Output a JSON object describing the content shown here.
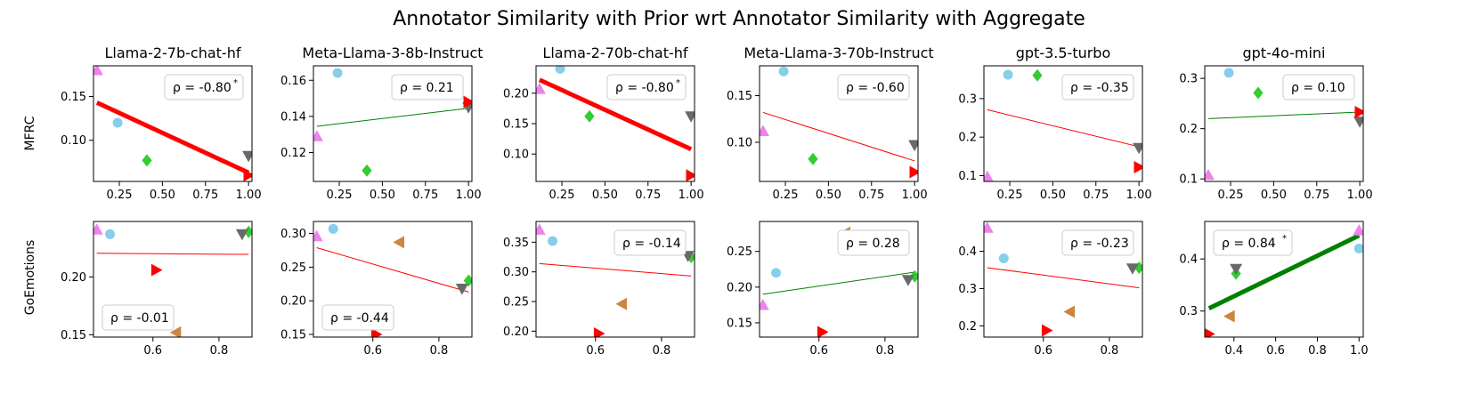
{
  "figure": {
    "title": "Annotator Similarity with Prior wrt Annotator Similarity with Aggregate"
  },
  "colors": {
    "violet": "#ee82ee",
    "skyblue": "#87ceeb",
    "green": "#32cd32",
    "dimgray": "#696969",
    "red": "#ff0000",
    "peru": "#cd853f",
    "pos_line": "#008000",
    "neg_line": "#ff0000"
  },
  "row_labels": [
    "MFRC",
    "GoEmotions"
  ],
  "chart_data": [
    {
      "type": "scatter",
      "row": 0,
      "col": 0,
      "title": "Llama-2-7b-chat-hf",
      "xlim": [
        0.1,
        1.02
      ],
      "ylim": [
        0.053,
        0.185
      ],
      "xticks": [
        0.25,
        0.5,
        0.75,
        1.0
      ],
      "xtick_labels": [
        "0.25",
        "0.50",
        "0.75",
        "1.00"
      ],
      "yticks": [
        0.1,
        0.15
      ],
      "ytick_labels": [
        "0.10",
        "0.15"
      ],
      "points": [
        {
          "x": 0.12,
          "y": 0.18,
          "marker": "tri-up",
          "color": "violet"
        },
        {
          "x": 0.24,
          "y": 0.12,
          "marker": "circle",
          "color": "skyblue"
        },
        {
          "x": 0.41,
          "y": 0.077,
          "marker": "diamond",
          "color": "green"
        },
        {
          "x": 1.0,
          "y": 0.082,
          "marker": "tri-down",
          "color": "dimgray"
        },
        {
          "x": 1.0,
          "y": 0.06,
          "marker": "tri-right",
          "color": "red"
        }
      ],
      "trend": {
        "x0": 0.12,
        "y0": 0.143,
        "x1": 1.0,
        "y1": 0.063,
        "width": 5,
        "color": "neg_line"
      },
      "rho": "ρ = -0.80",
      "significant": true,
      "rho_pos": "top-right"
    },
    {
      "type": "scatter",
      "row": 0,
      "col": 1,
      "title": "Meta-Llama-3-8b-Instruct",
      "xlim": [
        0.1,
        1.02
      ],
      "ylim": [
        0.104,
        0.168
      ],
      "xticks": [
        0.25,
        0.5,
        0.75,
        1.0
      ],
      "xtick_labels": [
        "0.25",
        "0.50",
        "0.75",
        "1.00"
      ],
      "yticks": [
        0.12,
        0.14,
        0.16
      ],
      "ytick_labels": [
        "0.12",
        "0.14",
        "0.16"
      ],
      "points": [
        {
          "x": 0.12,
          "y": 0.129,
          "marker": "tri-up",
          "color": "violet"
        },
        {
          "x": 0.24,
          "y": 0.164,
          "marker": "circle",
          "color": "skyblue"
        },
        {
          "x": 0.41,
          "y": 0.11,
          "marker": "diamond",
          "color": "green"
        },
        {
          "x": 1.0,
          "y": 0.145,
          "marker": "tri-down",
          "color": "dimgray"
        },
        {
          "x": 1.0,
          "y": 0.148,
          "marker": "tri-right",
          "color": "red"
        }
      ],
      "trend": {
        "x0": 0.12,
        "y0": 0.1345,
        "x1": 1.0,
        "y1": 0.1445,
        "width": 1,
        "color": "pos_line"
      },
      "rho": "ρ = 0.21",
      "significant": false,
      "rho_pos": "top-right"
    },
    {
      "type": "scatter",
      "row": 0,
      "col": 2,
      "title": "Llama-2-70b-chat-hf",
      "xlim": [
        0.1,
        1.02
      ],
      "ylim": [
        0.055,
        0.245
      ],
      "xticks": [
        0.25,
        0.5,
        0.75,
        1.0
      ],
      "xtick_labels": [
        "0.25",
        "0.50",
        "0.75",
        "1.00"
      ],
      "yticks": [
        0.1,
        0.15,
        0.2
      ],
      "ytick_labels": [
        "0.10",
        "0.15",
        "0.20"
      ],
      "points": [
        {
          "x": 0.12,
          "y": 0.207,
          "marker": "tri-up",
          "color": "violet"
        },
        {
          "x": 0.24,
          "y": 0.24,
          "marker": "circle",
          "color": "skyblue"
        },
        {
          "x": 0.41,
          "y": 0.162,
          "marker": "diamond",
          "color": "green"
        },
        {
          "x": 1.0,
          "y": 0.162,
          "marker": "tri-down",
          "color": "dimgray"
        },
        {
          "x": 1.0,
          "y": 0.065,
          "marker": "tri-right",
          "color": "red"
        }
      ],
      "trend": {
        "x0": 0.12,
        "y0": 0.222,
        "x1": 1.0,
        "y1": 0.108,
        "width": 5,
        "color": "neg_line"
      },
      "rho": "ρ = -0.80",
      "significant": true,
      "rho_pos": "top-right"
    },
    {
      "type": "scatter",
      "row": 0,
      "col": 3,
      "title": "Meta-Llama-3-70b-Instruct",
      "xlim": [
        0.1,
        1.02
      ],
      "ylim": [
        0.058,
        0.182
      ],
      "xticks": [
        0.25,
        0.5,
        0.75,
        1.0
      ],
      "xtick_labels": [
        "0.25",
        "0.50",
        "0.75",
        "1.00"
      ],
      "yticks": [
        0.1,
        0.15
      ],
      "ytick_labels": [
        "0.10",
        "0.15"
      ],
      "points": [
        {
          "x": 0.12,
          "y": 0.112,
          "marker": "tri-up",
          "color": "violet"
        },
        {
          "x": 0.24,
          "y": 0.176,
          "marker": "circle",
          "color": "skyblue"
        },
        {
          "x": 0.41,
          "y": 0.082,
          "marker": "diamond",
          "color": "green"
        },
        {
          "x": 1.0,
          "y": 0.097,
          "marker": "tri-down",
          "color": "dimgray"
        },
        {
          "x": 1.0,
          "y": 0.068,
          "marker": "tri-right",
          "color": "red"
        }
      ],
      "trend": {
        "x0": 0.12,
        "y0": 0.132,
        "x1": 1.0,
        "y1": 0.08,
        "width": 1,
        "color": "neg_line"
      },
      "rho": "ρ = -0.60",
      "significant": false,
      "rho_pos": "top-right"
    },
    {
      "type": "scatter",
      "row": 0,
      "col": 4,
      "title": "gpt-3.5-turbo",
      "xlim": [
        0.1,
        1.02
      ],
      "ylim": [
        0.085,
        0.385
      ],
      "xticks": [
        0.25,
        0.5,
        0.75,
        1.0
      ],
      "xtick_labels": [
        "0.25",
        "0.50",
        "0.75",
        "1.00"
      ],
      "yticks": [
        0.1,
        0.2,
        0.3
      ],
      "ytick_labels": [
        "0.1",
        "0.2",
        "0.3"
      ],
      "points": [
        {
          "x": 0.12,
          "y": 0.097,
          "marker": "tri-up",
          "color": "violet"
        },
        {
          "x": 0.24,
          "y": 0.362,
          "marker": "circle",
          "color": "skyblue"
        },
        {
          "x": 0.41,
          "y": 0.36,
          "marker": "diamond",
          "color": "green"
        },
        {
          "x": 1.0,
          "y": 0.172,
          "marker": "tri-down",
          "color": "dimgray"
        },
        {
          "x": 1.0,
          "y": 0.122,
          "marker": "tri-right",
          "color": "red"
        }
      ],
      "trend": {
        "x0": 0.12,
        "y0": 0.271,
        "x1": 1.0,
        "y1": 0.175,
        "width": 1,
        "color": "neg_line"
      },
      "rho": "ρ = -0.35",
      "significant": false,
      "rho_pos": "top-right"
    },
    {
      "type": "scatter",
      "row": 0,
      "col": 5,
      "title": "gpt-4o-mini",
      "xlim": [
        0.1,
        1.02
      ],
      "ylim": [
        0.095,
        0.325
      ],
      "xticks": [
        0.25,
        0.5,
        0.75,
        1.0
      ],
      "xtick_labels": [
        "0.25",
        "0.50",
        "0.75",
        "1.00"
      ],
      "yticks": [
        0.1,
        0.2,
        0.3
      ],
      "ytick_labels": [
        "0.1",
        "0.2",
        "0.3"
      ],
      "points": [
        {
          "x": 0.12,
          "y": 0.108,
          "marker": "tri-up",
          "color": "violet"
        },
        {
          "x": 0.24,
          "y": 0.311,
          "marker": "circle",
          "color": "skyblue"
        },
        {
          "x": 0.41,
          "y": 0.271,
          "marker": "diamond",
          "color": "green"
        },
        {
          "x": 1.0,
          "y": 0.214,
          "marker": "tri-down",
          "color": "dimgray"
        },
        {
          "x": 1.0,
          "y": 0.233,
          "marker": "tri-right",
          "color": "red"
        }
      ],
      "trend": {
        "x0": 0.12,
        "y0": 0.22,
        "x1": 1.0,
        "y1": 0.233,
        "width": 1,
        "color": "pos_line"
      },
      "rho": "ρ = 0.10",
      "significant": false,
      "rho_pos": "top-right"
    },
    {
      "type": "scatter",
      "row": 1,
      "col": 0,
      "title": "",
      "xlim": [
        0.42,
        0.9
      ],
      "ylim": [
        0.148,
        0.248
      ],
      "xticks": [
        0.6,
        0.8
      ],
      "xtick_labels": [
        "0.6",
        "0.8"
      ],
      "yticks": [
        0.15,
        0.2
      ],
      "ytick_labels": [
        "0.15",
        "0.20"
      ],
      "points": [
        {
          "x": 0.43,
          "y": 0.241,
          "marker": "tri-up",
          "color": "violet"
        },
        {
          "x": 0.47,
          "y": 0.237,
          "marker": "circle",
          "color": "skyblue"
        },
        {
          "x": 0.89,
          "y": 0.239,
          "marker": "diamond",
          "color": "green"
        },
        {
          "x": 0.87,
          "y": 0.237,
          "marker": "tri-down",
          "color": "dimgray"
        },
        {
          "x": 0.61,
          "y": 0.206,
          "marker": "tri-right",
          "color": "red"
        },
        {
          "x": 0.67,
          "y": 0.152,
          "marker": "tri-left",
          "color": "peru"
        }
      ],
      "trend": {
        "x0": 0.43,
        "y0": 0.2205,
        "x1": 0.89,
        "y1": 0.2195,
        "width": 1,
        "color": "neg_line"
      },
      "rho": "ρ = -0.01",
      "significant": false,
      "rho_pos": "bottom-left"
    },
    {
      "type": "scatter",
      "row": 1,
      "col": 1,
      "title": "",
      "xlim": [
        0.42,
        0.9
      ],
      "ylim": [
        0.146,
        0.318
      ],
      "xticks": [
        0.6,
        0.8
      ],
      "xtick_labels": [
        "0.6",
        "0.8"
      ],
      "yticks": [
        0.15,
        0.2,
        0.25,
        0.3
      ],
      "ytick_labels": [
        "0.15",
        "0.20",
        "0.25",
        "0.30"
      ],
      "points": [
        {
          "x": 0.43,
          "y": 0.296,
          "marker": "tri-up",
          "color": "violet"
        },
        {
          "x": 0.48,
          "y": 0.307,
          "marker": "circle",
          "color": "skyblue"
        },
        {
          "x": 0.89,
          "y": 0.23,
          "marker": "diamond",
          "color": "green"
        },
        {
          "x": 0.87,
          "y": 0.218,
          "marker": "tri-down",
          "color": "dimgray"
        },
        {
          "x": 0.61,
          "y": 0.15,
          "marker": "tri-right",
          "color": "red"
        },
        {
          "x": 0.68,
          "y": 0.287,
          "marker": "tri-left",
          "color": "peru"
        }
      ],
      "trend": {
        "x0": 0.43,
        "y0": 0.279,
        "x1": 0.89,
        "y1": 0.213,
        "width": 1,
        "color": "neg_line"
      },
      "rho": "ρ = -0.44",
      "significant": false,
      "rho_pos": "bottom-left"
    },
    {
      "type": "scatter",
      "row": 1,
      "col": 2,
      "title": "",
      "xlim": [
        0.42,
        0.9
      ],
      "ylim": [
        0.19,
        0.385
      ],
      "xticks": [
        0.6,
        0.8
      ],
      "xtick_labels": [
        "0.6",
        "0.8"
      ],
      "yticks": [
        0.2,
        0.25,
        0.3,
        0.35
      ],
      "ytick_labels": [
        "0.20",
        "0.25",
        "0.30",
        "0.35"
      ],
      "points": [
        {
          "x": 0.43,
          "y": 0.371,
          "marker": "tri-up",
          "color": "violet"
        },
        {
          "x": 0.47,
          "y": 0.352,
          "marker": "circle",
          "color": "skyblue"
        },
        {
          "x": 0.89,
          "y": 0.325,
          "marker": "diamond",
          "color": "green"
        },
        {
          "x": 0.88,
          "y": 0.327,
          "marker": "tri-down",
          "color": "dimgray"
        },
        {
          "x": 0.61,
          "y": 0.196,
          "marker": "tri-right",
          "color": "red"
        },
        {
          "x": 0.68,
          "y": 0.246,
          "marker": "tri-left",
          "color": "peru"
        }
      ],
      "trend": {
        "x0": 0.43,
        "y0": 0.314,
        "x1": 0.89,
        "y1": 0.293,
        "width": 1,
        "color": "neg_line"
      },
      "rho": "ρ = -0.14",
      "significant": false,
      "rho_pos": "top-right"
    },
    {
      "type": "scatter",
      "row": 1,
      "col": 3,
      "title": "",
      "xlim": [
        0.42,
        0.9
      ],
      "ylim": [
        0.13,
        0.292
      ],
      "xticks": [
        0.6,
        0.8
      ],
      "xtick_labels": [
        "0.6",
        "0.8"
      ],
      "yticks": [
        0.15,
        0.2,
        0.25
      ],
      "ytick_labels": [
        "0.15",
        "0.20",
        "0.25"
      ],
      "points": [
        {
          "x": 0.43,
          "y": 0.175,
          "marker": "tri-up",
          "color": "violet"
        },
        {
          "x": 0.47,
          "y": 0.22,
          "marker": "circle",
          "color": "skyblue"
        },
        {
          "x": 0.89,
          "y": 0.215,
          "marker": "diamond",
          "color": "green"
        },
        {
          "x": 0.87,
          "y": 0.21,
          "marker": "tri-down",
          "color": "dimgray"
        },
        {
          "x": 0.61,
          "y": 0.137,
          "marker": "tri-right",
          "color": "red"
        },
        {
          "x": 0.68,
          "y": 0.276,
          "marker": "tri-left",
          "color": "peru"
        }
      ],
      "trend": {
        "x0": 0.43,
        "y0": 0.19,
        "x1": 0.89,
        "y1": 0.221,
        "width": 1,
        "color": "pos_line"
      },
      "rho": "ρ = 0.28",
      "significant": false,
      "rho_pos": "top-right"
    },
    {
      "type": "scatter",
      "row": 1,
      "col": 4,
      "title": "",
      "xlim": [
        0.42,
        0.9
      ],
      "ylim": [
        0.17,
        0.48
      ],
      "xticks": [
        0.6,
        0.8
      ],
      "xtick_labels": [
        "0.6",
        "0.8"
      ],
      "yticks": [
        0.2,
        0.3,
        0.4
      ],
      "ytick_labels": [
        "0.2",
        "0.3",
        "0.4"
      ],
      "points": [
        {
          "x": 0.43,
          "y": 0.463,
          "marker": "tri-up",
          "color": "violet"
        },
        {
          "x": 0.48,
          "y": 0.381,
          "marker": "circle",
          "color": "skyblue"
        },
        {
          "x": 0.89,
          "y": 0.356,
          "marker": "diamond",
          "color": "green"
        },
        {
          "x": 0.87,
          "y": 0.354,
          "marker": "tri-down",
          "color": "dimgray"
        },
        {
          "x": 0.61,
          "y": 0.188,
          "marker": "tri-right",
          "color": "red"
        },
        {
          "x": 0.68,
          "y": 0.238,
          "marker": "tri-left",
          "color": "peru"
        }
      ],
      "trend": {
        "x0": 0.43,
        "y0": 0.356,
        "x1": 0.89,
        "y1": 0.302,
        "width": 1,
        "color": "neg_line"
      },
      "rho": "ρ = -0.23",
      "significant": false,
      "rho_pos": "top-right"
    },
    {
      "type": "scatter",
      "row": 1,
      "col": 5,
      "title": "",
      "xlim": [
        0.26,
        1.02
      ],
      "ylim": [
        0.25,
        0.472
      ],
      "xticks": [
        0.4,
        0.6,
        0.8,
        1.0
      ],
      "xtick_labels": [
        "0.4",
        "0.6",
        "0.8",
        "1.0"
      ],
      "yticks": [
        0.3,
        0.4
      ],
      "ytick_labels": [
        "0.3",
        "0.4"
      ],
      "points": [
        {
          "x": 1.0,
          "y": 0.455,
          "marker": "tri-up",
          "color": "violet"
        },
        {
          "x": 1.0,
          "y": 0.42,
          "marker": "circle",
          "color": "skyblue"
        },
        {
          "x": 0.41,
          "y": 0.372,
          "marker": "diamond",
          "color": "green"
        },
        {
          "x": 0.41,
          "y": 0.381,
          "marker": "tri-down",
          "color": "dimgray"
        },
        {
          "x": 0.28,
          "y": 0.256,
          "marker": "tri-right",
          "color": "red"
        },
        {
          "x": 0.38,
          "y": 0.29,
          "marker": "tri-left",
          "color": "peru"
        }
      ],
      "trend": {
        "x0": 0.28,
        "y0": 0.305,
        "x1": 1.0,
        "y1": 0.445,
        "width": 5,
        "color": "pos_line"
      },
      "rho": "ρ = 0.84",
      "significant": true,
      "rho_pos": "top-left"
    }
  ]
}
